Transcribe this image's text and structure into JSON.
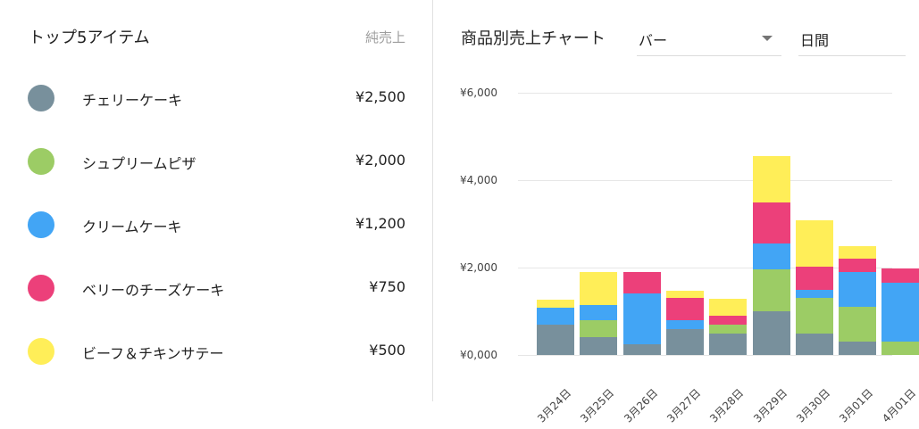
{
  "left_panel": {
    "title": "トップ5アイテム",
    "column_label": "純売上",
    "items": [
      {
        "name": "チェリーケーキ",
        "value": "¥2,500",
        "color": "#78909c"
      },
      {
        "name": "シュプリームピザ",
        "value": "¥2,000",
        "color": "#9ccc65"
      },
      {
        "name": "クリームケーキ",
        "value": "¥1,200",
        "color": "#42a5f5"
      },
      {
        "name": "ベリーのチーズケーキ",
        "value": "¥750",
        "color": "#ec407a"
      },
      {
        "name": "ビーフ＆チキンサテー",
        "value": "¥500",
        "color": "#ffee58"
      }
    ]
  },
  "chart_panel": {
    "title": "商品別売上チャート",
    "chart_type_select": {
      "value": "バー"
    },
    "period_select": {
      "value": "日間"
    }
  },
  "chart_data": {
    "type": "bar",
    "stacked": true,
    "title": "商品別売上チャート",
    "xlabel": "",
    "ylabel": "",
    "ylim": [
      0,
      6000
    ],
    "yticks": [
      "¥0,000",
      "¥2,000",
      "¥4,000",
      "¥6,000"
    ],
    "grid": true,
    "categories": [
      "3月24日",
      "3月25日",
      "3月26日",
      "3月27日",
      "3月28日",
      "3月29日",
      "3月30日",
      "3月01日",
      "4月01日"
    ],
    "series": [
      {
        "name": "チェリーケーキ",
        "color": "#78909c",
        "values": [
          700,
          400,
          250,
          600,
          500,
          1000,
          500,
          300,
          0
        ]
      },
      {
        "name": "シュプリームピザ",
        "color": "#9ccc65",
        "values": [
          0,
          400,
          0,
          0,
          200,
          950,
          800,
          800,
          300
        ]
      },
      {
        "name": "クリームケーキ",
        "color": "#42a5f5",
        "values": [
          380,
          350,
          1150,
          200,
          0,
          600,
          200,
          800,
          1350
        ]
      },
      {
        "name": "ベリーのチーズケーキ",
        "color": "#ec407a",
        "values": [
          0,
          0,
          500,
          500,
          200,
          950,
          530,
          300,
          330
        ]
      },
      {
        "name": "ビーフ＆チキンサテー",
        "color": "#ffee58",
        "values": [
          180,
          750,
          0,
          180,
          380,
          1050,
          1050,
          300,
          0
        ]
      }
    ]
  }
}
